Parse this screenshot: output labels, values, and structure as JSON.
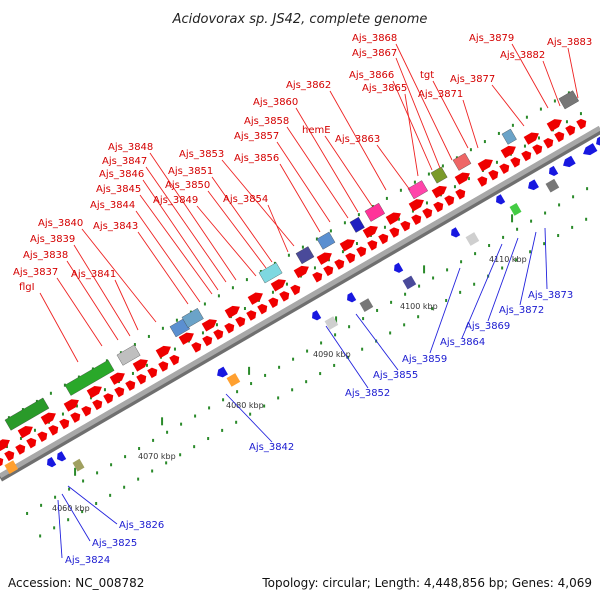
{
  "title": "Acidovorax sp. JS42, complete genome",
  "footer": {
    "accession": "Accession: NC_008782",
    "topology": "Topology: circular; Length: 4,448,856 bp; Genes: 4,069"
  },
  "colors": {
    "forward_label": "#d40000",
    "reverse_label": "#1a1ad0",
    "backbone": "#9a9a9a"
  },
  "kbp_ticks": [
    "4060 kbp",
    "4070 kbp",
    "4080 kbp",
    "4090 kbp",
    "4100 kbp",
    "4110 kbp"
  ],
  "forward_labels": [
    "Ajs_3868",
    "Ajs_3879",
    "Ajs_3883",
    "Ajs_3867",
    "Ajs_3882",
    "Ajs_3866",
    "tgt",
    "Ajs_3877",
    "Ajs_3862",
    "Ajs_3865",
    "Ajs_3871",
    "Ajs_3860",
    "Ajs_3858",
    "hemE",
    "Ajs_3857",
    "Ajs_3863",
    "Ajs_3848",
    "Ajs_3853",
    "Ajs_3856",
    "Ajs_3847",
    "Ajs_3851",
    "Ajs_3846",
    "Ajs_3850",
    "Ajs_3845",
    "Ajs_3849",
    "Ajs_3854",
    "Ajs_3844",
    "Ajs_3843",
    "Ajs_3840",
    "Ajs_3839",
    "Ajs_3838",
    "Ajs_3837",
    "Ajs_3841",
    "flgI"
  ],
  "reverse_labels": [
    "Ajs_3873",
    "Ajs_3872",
    "Ajs_3869",
    "Ajs_3864",
    "Ajs_3859",
    "Ajs_3855",
    "Ajs_3852",
    "Ajs_3842",
    "Ajs_3826",
    "Ajs_3825",
    "Ajs_3824"
  ]
}
